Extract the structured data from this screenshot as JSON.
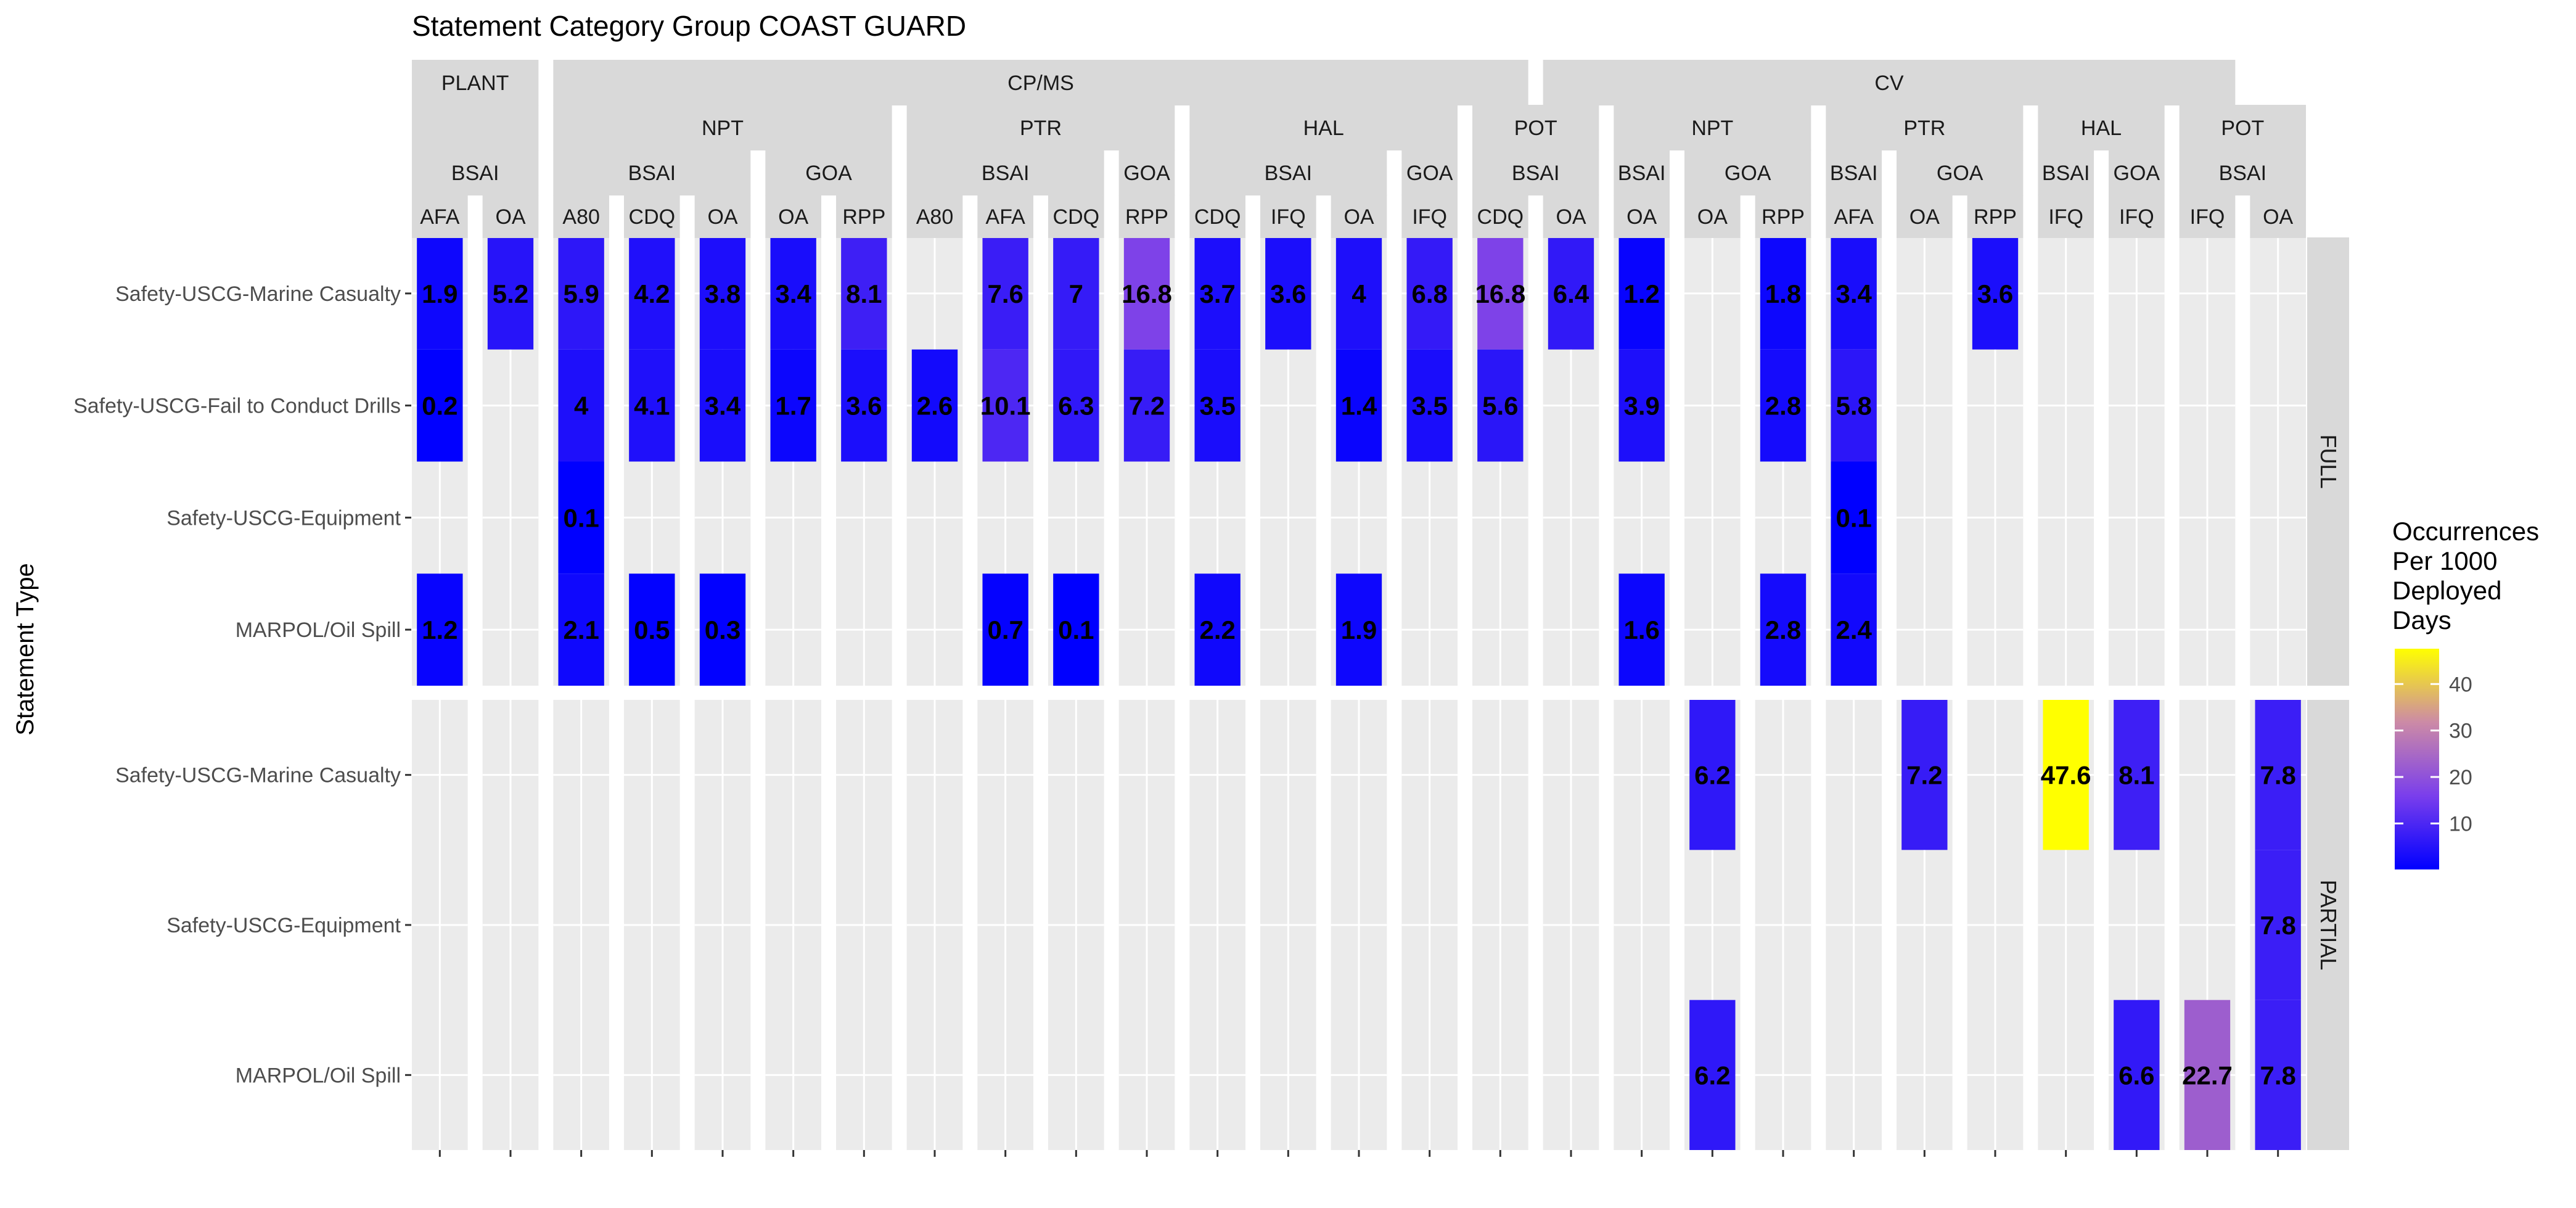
{
  "chart_data": {
    "type": "heatmap",
    "title": "Statement Category Group COAST GUARD",
    "ylabel": "Statement Type",
    "legend": {
      "title_lines": [
        "Occurrences",
        "Per 1000",
        "Deployed",
        "Days"
      ],
      "ticks": [
        10,
        20,
        30,
        40
      ],
      "range": [
        0.1,
        47.6
      ],
      "colors": [
        "#0000FF",
        "#7A3EEC",
        "#CC8AA6",
        "#FFFF00"
      ],
      "position": "right"
    },
    "facet_rows": [
      {
        "label": "FULL",
        "categories": [
          "Safety-USCG-Marine Casualty",
          "Safety-USCG-Fail to Conduct Drills",
          "Safety-USCG-Equipment",
          "MARPOL/Oil Spill"
        ]
      },
      {
        "label": "PARTIAL",
        "categories": [
          "Safety-USCG-Marine Casualty",
          "Safety-USCG-Equipment",
          "MARPOL/Oil Spill"
        ]
      }
    ],
    "header_levels": {
      "l1": [
        {
          "label": "PLANT",
          "span": 2
        },
        {
          "label": "CP/MS",
          "span": 14
        },
        {
          "label": "CV",
          "span": 10
        }
      ],
      "l2": [
        {
          "label": "",
          "span": 2
        },
        {
          "label": "NPT",
          "span": 5
        },
        {
          "label": "PTR",
          "span": 4
        },
        {
          "label": "HAL",
          "span": 4
        },
        {
          "label": "POT",
          "span": 2
        },
        {
          "label": "NPT",
          "span": 3
        },
        {
          "label": "PTR",
          "span": 3
        },
        {
          "label": "HAL",
          "span": 2
        },
        {
          "label": "POT",
          "span": 2
        }
      ],
      "l3": [
        {
          "label": "BSAI",
          "span": 2
        },
        {
          "label": "BSAI",
          "span": 3
        },
        {
          "label": "GOA",
          "span": 2
        },
        {
          "label": "BSAI",
          "span": 3
        },
        {
          "label": "GOA",
          "span": 1
        },
        {
          "label": "BSAI",
          "span": 3
        },
        {
          "label": "GOA",
          "span": 1
        },
        {
          "label": "BSAI",
          "span": 2
        },
        {
          "label": "BSAI",
          "span": 1
        },
        {
          "label": "GOA",
          "span": 2
        },
        {
          "label": "BSAI",
          "span": 1
        },
        {
          "label": "GOA",
          "span": 2
        },
        {
          "label": "BSAI",
          "span": 1
        },
        {
          "label": "GOA",
          "span": 1
        },
        {
          "label": "BSAI",
          "span": 2
        }
      ],
      "l4": [
        "AFA",
        "OA",
        "A80",
        "CDQ",
        "OA",
        "OA",
        "RPP",
        "A80",
        "AFA",
        "CDQ",
        "RPP",
        "CDQ",
        "IFQ",
        "OA",
        "IFQ",
        "CDQ",
        "OA",
        "OA",
        "OA",
        "RPP",
        "AFA",
        "OA",
        "RPP",
        "IFQ",
        "IFQ",
        "IFQ",
        "OA"
      ]
    },
    "series": [
      {
        "name": "FULL / Safety-USCG-Marine Casualty",
        "values": [
          1.9,
          5.2,
          5.9,
          4.2,
          3.8,
          3.4,
          8.1,
          null,
          7.6,
          7,
          16.8,
          3.7,
          3.6,
          4,
          6.8,
          16.8,
          6.4,
          1.2,
          null,
          1.8,
          3.4,
          null,
          3.6,
          null,
          null,
          null,
          null
        ]
      },
      {
        "name": "FULL / Safety-USCG-Fail to Conduct Drills",
        "values": [
          0.2,
          null,
          4,
          4.1,
          3.4,
          1.7,
          3.6,
          2.6,
          10.1,
          6.3,
          7.2,
          3.5,
          null,
          1.4,
          3.5,
          5.6,
          null,
          3.9,
          null,
          2.8,
          5.8,
          null,
          null,
          null,
          null,
          null,
          null
        ]
      },
      {
        "name": "FULL / Safety-USCG-Equipment",
        "values": [
          null,
          null,
          0.1,
          null,
          null,
          null,
          null,
          null,
          null,
          null,
          null,
          null,
          null,
          null,
          null,
          null,
          null,
          null,
          null,
          null,
          0.1,
          null,
          null,
          null,
          null,
          null,
          null
        ]
      },
      {
        "name": "FULL / MARPOL/Oil Spill",
        "values": [
          1.2,
          null,
          2.1,
          0.5,
          0.3,
          null,
          null,
          null,
          0.7,
          0.1,
          null,
          2.2,
          null,
          1.9,
          null,
          null,
          null,
          1.6,
          null,
          2.8,
          2.4,
          null,
          null,
          null,
          null,
          null,
          null
        ]
      },
      {
        "name": "PARTIAL / Safety-USCG-Marine Casualty",
        "values": [
          null,
          null,
          null,
          null,
          null,
          null,
          null,
          null,
          null,
          null,
          null,
          null,
          null,
          null,
          null,
          null,
          null,
          null,
          6.2,
          null,
          null,
          7.2,
          null,
          47.6,
          8.1,
          null,
          7.8
        ]
      },
      {
        "name": "PARTIAL / Safety-USCG-Equipment",
        "values": [
          null,
          null,
          null,
          null,
          null,
          null,
          null,
          null,
          null,
          null,
          null,
          null,
          null,
          null,
          null,
          null,
          null,
          null,
          null,
          null,
          null,
          null,
          null,
          null,
          null,
          null,
          7.8
        ]
      },
      {
        "name": "PARTIAL / MARPOL/Oil Spill",
        "values": [
          null,
          null,
          null,
          null,
          null,
          null,
          null,
          null,
          null,
          null,
          null,
          null,
          null,
          null,
          null,
          null,
          null,
          null,
          6.2,
          null,
          null,
          null,
          null,
          null,
          6.6,
          22.7,
          7.8
        ]
      }
    ],
    "grid": true
  }
}
